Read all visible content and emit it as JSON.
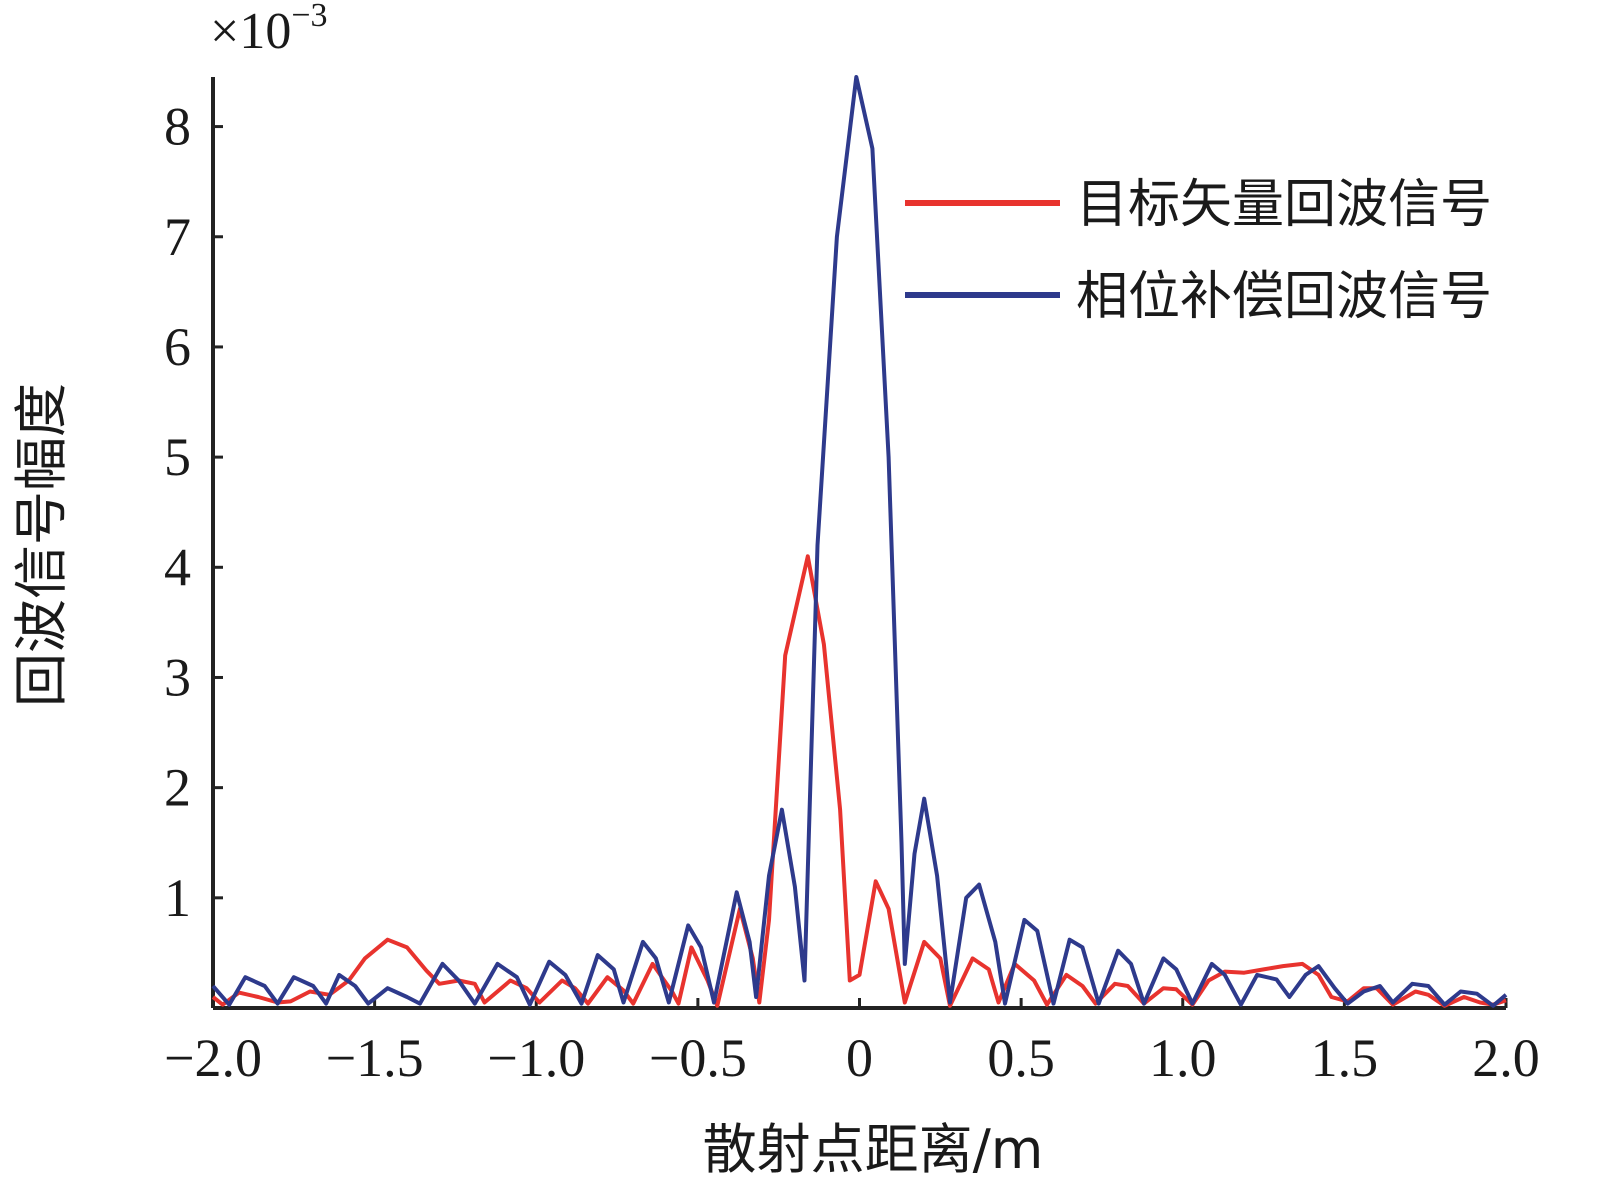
{
  "chart_data": {
    "type": "line",
    "title": "",
    "xlabel": "散射点距离/m",
    "ylabel": "回波信号幅度",
    "y_multiplier_text": "×10",
    "y_multiplier_exp": "−3",
    "xlim": [
      -2.0,
      2.0
    ],
    "ylim": [
      0,
      8.45
    ],
    "x_ticks": [
      -2.0,
      -1.5,
      -1.0,
      -0.5,
      0,
      0.5,
      1.0,
      1.5,
      2.0
    ],
    "x_tick_labels": [
      "−2.0",
      "−1.5",
      "−1.0",
      "−0.5",
      "0",
      "0.5",
      "1.0",
      "1.5",
      "2.0"
    ],
    "y_ticks": [
      1,
      2,
      3,
      4,
      5,
      6,
      7,
      8
    ],
    "y_tick_labels": [
      "1",
      "2",
      "3",
      "4",
      "5",
      "6",
      "7",
      "8"
    ],
    "grid": false,
    "legend_position": "top-right",
    "series": [
      {
        "name": "目标矢量回波信号",
        "color": "#e8332e",
        "points": [
          [
            -2.0,
            0.1
          ],
          [
            -1.97,
            0.03
          ],
          [
            -1.92,
            0.14
          ],
          [
            -1.86,
            0.1
          ],
          [
            -1.8,
            0.05
          ],
          [
            -1.76,
            0.06
          ],
          [
            -1.7,
            0.15
          ],
          [
            -1.64,
            0.12
          ],
          [
            -1.58,
            0.25
          ],
          [
            -1.53,
            0.45
          ],
          [
            -1.46,
            0.62
          ],
          [
            -1.4,
            0.55
          ],
          [
            -1.34,
            0.34
          ],
          [
            -1.3,
            0.22
          ],
          [
            -1.24,
            0.25
          ],
          [
            -1.19,
            0.22
          ],
          [
            -1.16,
            0.05
          ],
          [
            -1.08,
            0.25
          ],
          [
            -1.03,
            0.18
          ],
          [
            -0.99,
            0.05
          ],
          [
            -0.92,
            0.25
          ],
          [
            -0.88,
            0.18
          ],
          [
            -0.84,
            0.04
          ],
          [
            -0.78,
            0.28
          ],
          [
            -0.73,
            0.16
          ],
          [
            -0.7,
            0.04
          ],
          [
            -0.64,
            0.4
          ],
          [
            -0.58,
            0.15
          ],
          [
            -0.56,
            0.04
          ],
          [
            -0.52,
            0.55
          ],
          [
            -0.47,
            0.25
          ],
          [
            -0.44,
            0.02
          ],
          [
            -0.37,
            0.9
          ],
          [
            -0.33,
            0.45
          ],
          [
            -0.31,
            0.05
          ],
          [
            -0.28,
            0.8
          ],
          [
            -0.23,
            3.2
          ],
          [
            -0.16,
            4.1
          ],
          [
            -0.11,
            3.3
          ],
          [
            -0.06,
            1.8
          ],
          [
            -0.03,
            0.25
          ],
          [
            0.0,
            0.3
          ],
          [
            0.05,
            1.15
          ],
          [
            0.09,
            0.9
          ],
          [
            0.14,
            0.05
          ],
          [
            0.2,
            0.6
          ],
          [
            0.25,
            0.45
          ],
          [
            0.28,
            0.02
          ],
          [
            0.35,
            0.45
          ],
          [
            0.4,
            0.35
          ],
          [
            0.43,
            0.05
          ],
          [
            0.48,
            0.4
          ],
          [
            0.54,
            0.25
          ],
          [
            0.58,
            0.03
          ],
          [
            0.64,
            0.3
          ],
          [
            0.69,
            0.2
          ],
          [
            0.73,
            0.04
          ],
          [
            0.79,
            0.22
          ],
          [
            0.83,
            0.2
          ],
          [
            0.88,
            0.04
          ],
          [
            0.94,
            0.18
          ],
          [
            0.98,
            0.17
          ],
          [
            1.03,
            0.03
          ],
          [
            1.08,
            0.25
          ],
          [
            1.13,
            0.33
          ],
          [
            1.19,
            0.32
          ],
          [
            1.25,
            0.35
          ],
          [
            1.31,
            0.38
          ],
          [
            1.37,
            0.4
          ],
          [
            1.42,
            0.3
          ],
          [
            1.46,
            0.1
          ],
          [
            1.51,
            0.06
          ],
          [
            1.56,
            0.18
          ],
          [
            1.6,
            0.18
          ],
          [
            1.65,
            0.03
          ],
          [
            1.72,
            0.15
          ],
          [
            1.76,
            0.12
          ],
          [
            1.81,
            0.02
          ],
          [
            1.87,
            0.1
          ],
          [
            1.92,
            0.05
          ],
          [
            1.96,
            0.03
          ],
          [
            2.0,
            0.07
          ]
        ]
      },
      {
        "name": "相位补偿回波信号",
        "color": "#2e3a8c",
        "points": [
          [
            -2.0,
            0.2
          ],
          [
            -1.95,
            0.03
          ],
          [
            -1.9,
            0.28
          ],
          [
            -1.84,
            0.2
          ],
          [
            -1.8,
            0.04
          ],
          [
            -1.75,
            0.28
          ],
          [
            -1.69,
            0.2
          ],
          [
            -1.65,
            0.04
          ],
          [
            -1.61,
            0.3
          ],
          [
            -1.56,
            0.2
          ],
          [
            -1.52,
            0.04
          ],
          [
            -1.46,
            0.18
          ],
          [
            -1.4,
            0.1
          ],
          [
            -1.36,
            0.04
          ],
          [
            -1.29,
            0.4
          ],
          [
            -1.24,
            0.25
          ],
          [
            -1.19,
            0.04
          ],
          [
            -1.12,
            0.4
          ],
          [
            -1.06,
            0.28
          ],
          [
            -1.02,
            0.03
          ],
          [
            -0.96,
            0.42
          ],
          [
            -0.91,
            0.3
          ],
          [
            -0.86,
            0.04
          ],
          [
            -0.81,
            0.48
          ],
          [
            -0.76,
            0.35
          ],
          [
            -0.73,
            0.05
          ],
          [
            -0.67,
            0.6
          ],
          [
            -0.63,
            0.45
          ],
          [
            -0.59,
            0.05
          ],
          [
            -0.53,
            0.75
          ],
          [
            -0.49,
            0.55
          ],
          [
            -0.45,
            0.05
          ],
          [
            -0.38,
            1.05
          ],
          [
            -0.34,
            0.6
          ],
          [
            -0.32,
            0.1
          ],
          [
            -0.28,
            1.2
          ],
          [
            -0.24,
            1.8
          ],
          [
            -0.2,
            1.1
          ],
          [
            -0.17,
            0.25
          ],
          [
            -0.13,
            4.2
          ],
          [
            -0.07,
            7.0
          ],
          [
            -0.01,
            8.45
          ],
          [
            0.04,
            7.8
          ],
          [
            0.09,
            5.0
          ],
          [
            0.13,
            1.5
          ],
          [
            0.14,
            0.4
          ],
          [
            0.17,
            1.4
          ],
          [
            0.2,
            1.9
          ],
          [
            0.24,
            1.2
          ],
          [
            0.28,
            0.05
          ],
          [
            0.33,
            1.0
          ],
          [
            0.37,
            1.12
          ],
          [
            0.42,
            0.6
          ],
          [
            0.45,
            0.04
          ],
          [
            0.51,
            0.8
          ],
          [
            0.55,
            0.7
          ],
          [
            0.6,
            0.04
          ],
          [
            0.65,
            0.62
          ],
          [
            0.69,
            0.55
          ],
          [
            0.74,
            0.04
          ],
          [
            0.8,
            0.52
          ],
          [
            0.84,
            0.4
          ],
          [
            0.88,
            0.04
          ],
          [
            0.94,
            0.45
          ],
          [
            0.98,
            0.35
          ],
          [
            1.03,
            0.04
          ],
          [
            1.09,
            0.4
          ],
          [
            1.13,
            0.3
          ],
          [
            1.18,
            0.03
          ],
          [
            1.23,
            0.3
          ],
          [
            1.29,
            0.26
          ],
          [
            1.33,
            0.1
          ],
          [
            1.38,
            0.3
          ],
          [
            1.42,
            0.38
          ],
          [
            1.47,
            0.18
          ],
          [
            1.51,
            0.04
          ],
          [
            1.56,
            0.15
          ],
          [
            1.61,
            0.2
          ],
          [
            1.65,
            0.05
          ],
          [
            1.71,
            0.22
          ],
          [
            1.76,
            0.2
          ],
          [
            1.81,
            0.03
          ],
          [
            1.86,
            0.15
          ],
          [
            1.91,
            0.13
          ],
          [
            1.96,
            0.02
          ],
          [
            2.0,
            0.12
          ]
        ]
      }
    ]
  }
}
